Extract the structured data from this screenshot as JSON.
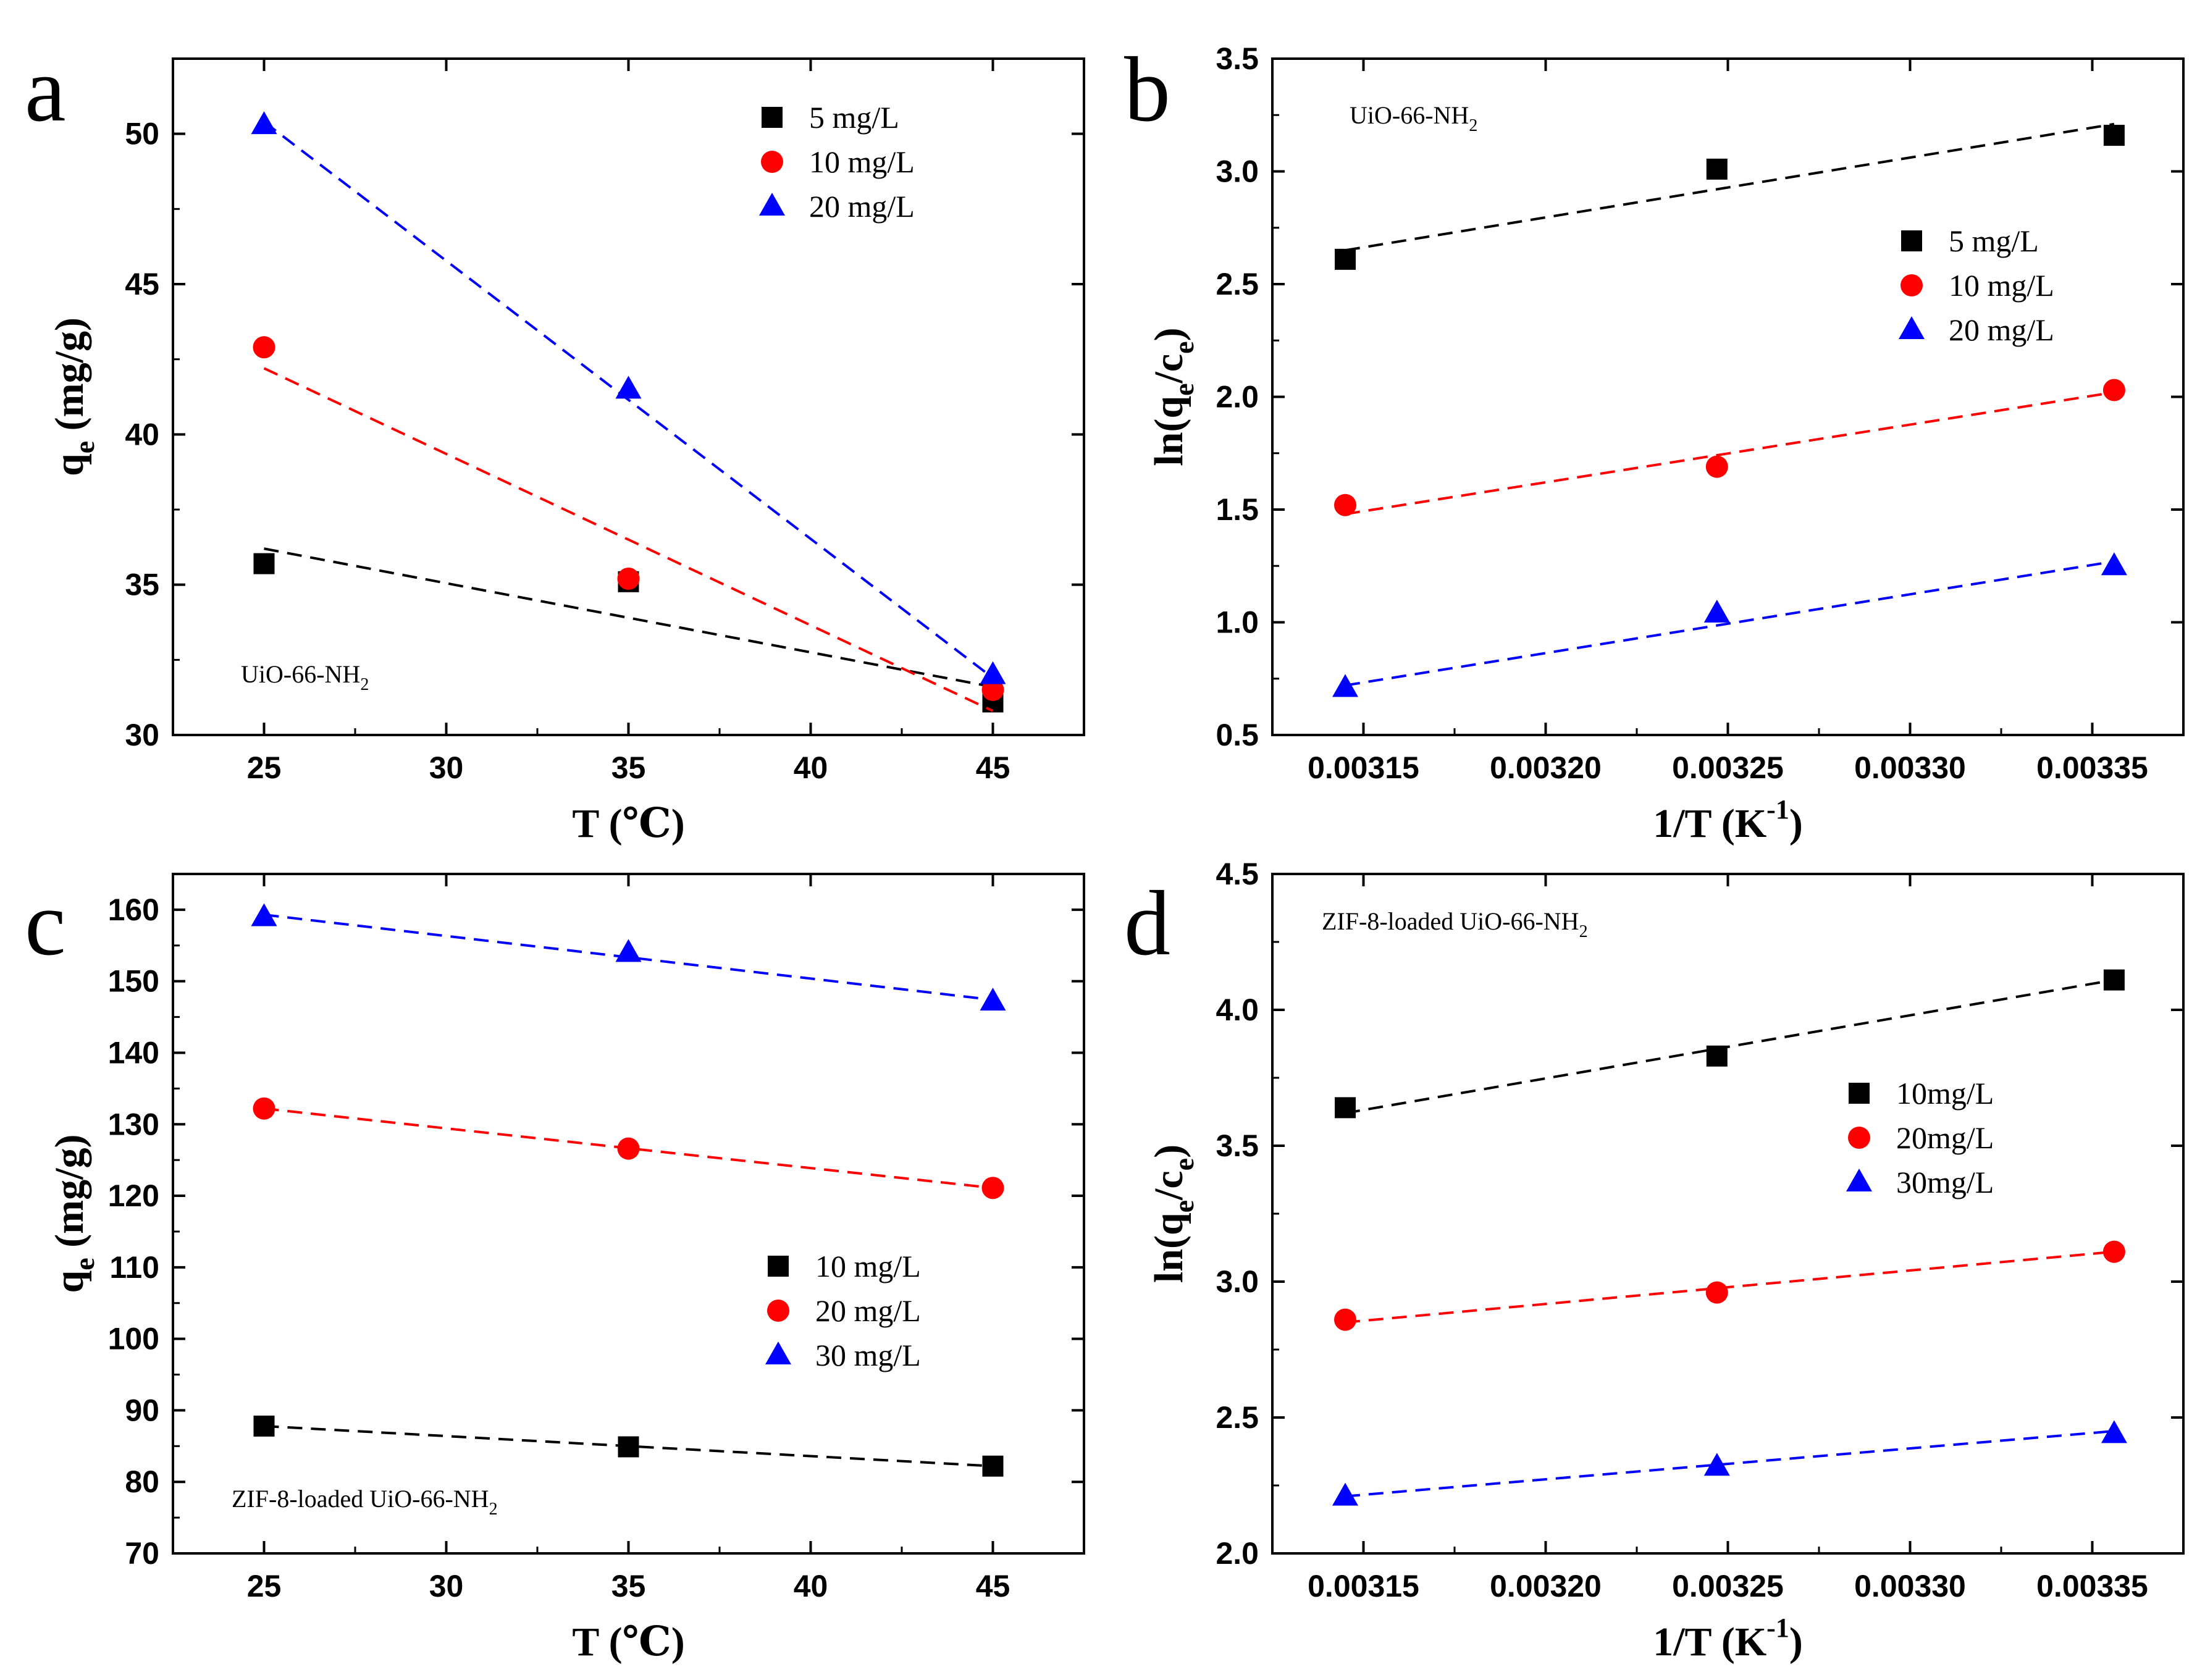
{
  "colors": {
    "black": "#000000",
    "red": "#ff0000",
    "blue": "#0000ff"
  },
  "chart_data": [
    {
      "panel": "a",
      "type": "scatter",
      "xlabel": "T (℃)",
      "ylabel_main": "q",
      "ylabel_sub": "e",
      "ylabel_rest": " (mg/g)",
      "annotation_main": "UiO-66-NH",
      "annotation_sub": "2",
      "legend_position": "top-right",
      "xlim": [
        22.5,
        47.5
      ],
      "ylim": [
        30,
        52.5
      ],
      "xticks": [
        25,
        30,
        35,
        40,
        45
      ],
      "xtick_labels": [
        "25",
        "30",
        "35",
        "40",
        "45"
      ],
      "yticks": [
        30,
        35,
        40,
        45,
        50
      ],
      "ytick_labels": [
        "30",
        "35",
        "40",
        "45",
        "50"
      ],
      "series": [
        {
          "name": "5 mg/L",
          "color": "#000000",
          "marker": "square",
          "x": [
            25,
            35,
            45
          ],
          "y": [
            35.7,
            35.1,
            31.1
          ],
          "fit": [
            [
              25,
              36.2
            ],
            [
              45,
              31.6
            ]
          ]
        },
        {
          "name": "10 mg/L",
          "color": "#ff0000",
          "marker": "circle",
          "x": [
            25,
            35,
            45
          ],
          "y": [
            42.9,
            35.2,
            31.5
          ],
          "fit": [
            [
              25,
              42.2
            ],
            [
              45,
              30.8
            ]
          ]
        },
        {
          "name": "20 mg/L",
          "color": "#0000ff",
          "marker": "triangle",
          "x": [
            25,
            35,
            45
          ],
          "y": [
            50.3,
            41.5,
            32.0
          ],
          "fit": [
            [
              25,
              50.4
            ],
            [
              45,
              31.9
            ]
          ]
        }
      ]
    },
    {
      "panel": "b",
      "type": "scatter",
      "xlabel_main": "1/T (K",
      "xlabel_sup": "-1",
      "xlabel_end": ")",
      "ylabel_main": "ln(q",
      "ylabel_sub": "e",
      "ylabel_mid": "/c",
      "ylabel_sub2": "e",
      "ylabel_end": ")",
      "annotation_main": "UiO-66-NH",
      "annotation_sub": "2",
      "legend_position": "center-right",
      "xlim": [
        0.003125,
        0.003375
      ],
      "ylim": [
        0.5,
        3.5
      ],
      "xticks": [
        0.00315,
        0.0032,
        0.00325,
        0.0033,
        0.00335
      ],
      "xtick_labels": [
        "0.00315",
        "0.00320",
        "0.00325",
        "0.00330",
        "0.00335"
      ],
      "yticks": [
        0.5,
        1.0,
        1.5,
        2.0,
        2.5,
        3.0,
        3.5
      ],
      "ytick_labels": [
        "0.5",
        "1.0",
        "1.5",
        "2.0",
        "2.5",
        "3.0",
        "3.5"
      ],
      "series": [
        {
          "name": "5 mg/L",
          "color": "#000000",
          "marker": "square",
          "x": [
            0.003145,
            0.003247,
            0.003356
          ],
          "y": [
            2.61,
            3.01,
            3.16
          ],
          "fit": [
            [
              0.003145,
              2.65
            ],
            [
              0.003356,
              3.21
            ]
          ]
        },
        {
          "name": "10 mg/L",
          "color": "#ff0000",
          "marker": "circle",
          "x": [
            0.003145,
            0.003247,
            0.003356
          ],
          "y": [
            1.52,
            1.69,
            2.03
          ],
          "fit": [
            [
              0.003145,
              1.48
            ],
            [
              0.003356,
              2.02
            ]
          ]
        },
        {
          "name": "20 mg/L",
          "color": "#0000ff",
          "marker": "triangle",
          "x": [
            0.003145,
            0.003247,
            0.003356
          ],
          "y": [
            0.71,
            1.04,
            1.25
          ],
          "fit": [
            [
              0.003145,
              0.72
            ],
            [
              0.003356,
              1.27
            ]
          ]
        }
      ]
    },
    {
      "panel": "c",
      "type": "scatter",
      "xlabel": "T (℃)",
      "ylabel_main": "q",
      "ylabel_sub": "e",
      "ylabel_rest": " (mg/g)",
      "annotation_main": "ZIF-8-loaded UiO-66-NH",
      "annotation_sub": "2",
      "legend_position": "center-right",
      "xlim": [
        22.5,
        47.5
      ],
      "ylim": [
        70,
        165
      ],
      "xticks": [
        25,
        30,
        35,
        40,
        45
      ],
      "xtick_labels": [
        "25",
        "30",
        "35",
        "40",
        "45"
      ],
      "yticks": [
        70,
        80,
        90,
        100,
        110,
        120,
        130,
        140,
        150,
        160
      ],
      "ytick_labels": [
        "70",
        "80",
        "90",
        "100",
        "110",
        "120",
        "130",
        "140",
        "150",
        "160"
      ],
      "series": [
        {
          "name": "10 mg/L",
          "color": "#000000",
          "marker": "square",
          "x": [
            25,
            35,
            45
          ],
          "y": [
            87.8,
            84.9,
            82.2
          ],
          "fit": [
            [
              25,
              87.8
            ],
            [
              45,
              82.2
            ]
          ]
        },
        {
          "name": "20 mg/L",
          "color": "#ff0000",
          "marker": "circle",
          "x": [
            25,
            35,
            45
          ],
          "y": [
            132.2,
            126.6,
            121.1
          ],
          "fit": [
            [
              25,
              132.2
            ],
            [
              45,
              121.1
            ]
          ]
        },
        {
          "name": "30 mg/L",
          "color": "#0000ff",
          "marker": "triangle",
          "x": [
            25,
            35,
            45
          ],
          "y": [
            159.0,
            154.0,
            147.2
          ],
          "fit": [
            [
              25,
              159.3
            ],
            [
              45,
              147.4
            ]
          ]
        }
      ]
    },
    {
      "panel": "d",
      "type": "scatter",
      "xlabel_main": "1/T (K",
      "xlabel_sup": "-1",
      "xlabel_end": ")",
      "ylabel_main": "ln(q",
      "ylabel_sub": "e",
      "ylabel_mid": "/c",
      "ylabel_sub2": "e",
      "ylabel_end": ")",
      "annotation_main": "ZIF-8-loaded UiO-66-NH",
      "annotation_sub": "2",
      "legend_position": "center-right",
      "xlim": [
        0.003125,
        0.003375
      ],
      "ylim": [
        2.0,
        4.5
      ],
      "xticks": [
        0.00315,
        0.0032,
        0.00325,
        0.0033,
        0.00335
      ],
      "xtick_labels": [
        "0.00315",
        "0.00320",
        "0.00325",
        "0.00330",
        "0.00335"
      ],
      "yticks": [
        2.0,
        2.5,
        3.0,
        3.5,
        4.0,
        4.5
      ],
      "ytick_labels": [
        "2.0",
        "2.5",
        "3.0",
        "3.5",
        "4.0",
        "4.5"
      ],
      "series": [
        {
          "name": "10mg/L",
          "color": "#000000",
          "marker": "square",
          "x": [
            0.003145,
            0.003247,
            0.003356
          ],
          "y": [
            3.64,
            3.83,
            4.11
          ],
          "fit": [
            [
              0.003145,
              3.62
            ],
            [
              0.003356,
              4.11
            ]
          ]
        },
        {
          "name": "20mg/L",
          "color": "#ff0000",
          "marker": "circle",
          "x": [
            0.003145,
            0.003247,
            0.003356
          ],
          "y": [
            2.86,
            2.96,
            3.11
          ],
          "fit": [
            [
              0.003145,
              2.85
            ],
            [
              0.003356,
              3.11
            ]
          ]
        },
        {
          "name": "30mg/L",
          "color": "#0000ff",
          "marker": "triangle",
          "x": [
            0.003145,
            0.003247,
            0.003356
          ],
          "y": [
            2.21,
            2.32,
            2.44
          ],
          "fit": [
            [
              0.003145,
              2.21
            ],
            [
              0.003356,
              2.45
            ]
          ]
        }
      ]
    }
  ]
}
